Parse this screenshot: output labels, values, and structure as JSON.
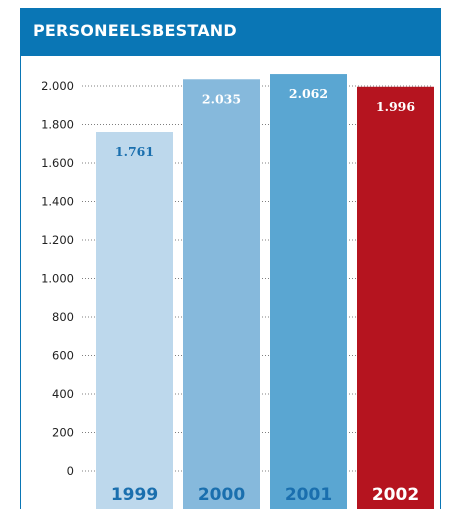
{
  "header": {
    "title": "PERSONEELSBESTAND"
  },
  "chart_data": {
    "type": "bar",
    "title": "PERSONEELSBESTAND",
    "categories": [
      "1999",
      "2000",
      "2001",
      "2002"
    ],
    "values": [
      1761,
      2035,
      2062,
      1996
    ],
    "value_labels": [
      "1.761",
      "2.035",
      "2.062",
      "1.996"
    ],
    "ylim": [
      0,
      2000
    ],
    "yticks": [
      {
        "value": 0,
        "label": "0"
      },
      {
        "value": 200,
        "label": "200"
      },
      {
        "value": 400,
        "label": "400"
      },
      {
        "value": 600,
        "label": "600"
      },
      {
        "value": 800,
        "label": "800"
      },
      {
        "value": 1000,
        "label": "1.000"
      },
      {
        "value": 1200,
        "label": "1.200"
      },
      {
        "value": 1400,
        "label": "1.400"
      },
      {
        "value": 1600,
        "label": "1.600"
      },
      {
        "value": 1800,
        "label": "1.800"
      },
      {
        "value": 2000,
        "label": "2.000"
      }
    ],
    "bar_colors": [
      "#bdd8ec",
      "#86b9dc",
      "#5aa6d2",
      "#b5141f"
    ],
    "value_label_colors": [
      "#1a6fae",
      "#ffffff",
      "#ffffff",
      "#ffffff"
    ],
    "category_label_colors": [
      "#1a6fae",
      "#1a6fae",
      "#1a6fae",
      "#ffffff"
    ],
    "header_color": "#0a76b5",
    "grid": "dotted",
    "legend": "none"
  }
}
